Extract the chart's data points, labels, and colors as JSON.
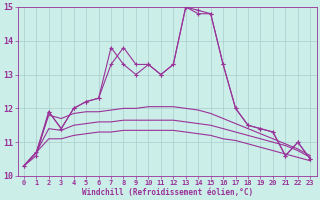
{
  "x": [
    0,
    1,
    2,
    3,
    4,
    5,
    6,
    7,
    8,
    9,
    10,
    11,
    12,
    13,
    14,
    15,
    16,
    17,
    18,
    19,
    20,
    21,
    22,
    23
  ],
  "jagged1": [
    10.3,
    10.6,
    11.9,
    11.4,
    12.0,
    12.2,
    12.3,
    13.3,
    13.8,
    13.3,
    13.3,
    13.0,
    13.3,
    15.0,
    14.8,
    14.8,
    13.3,
    12.0,
    11.5,
    11.4,
    11.3,
    10.6,
    11.0,
    10.5
  ],
  "jagged2": [
    10.3,
    10.7,
    11.9,
    11.4,
    12.0,
    12.2,
    12.3,
    13.8,
    13.3,
    13.0,
    13.3,
    13.0,
    13.3,
    15.0,
    14.9,
    14.8,
    13.3,
    12.0,
    11.5,
    11.4,
    11.3,
    10.6,
    11.0,
    10.5
  ],
  "smooth1": [
    10.3,
    10.7,
    11.8,
    11.7,
    11.85,
    11.9,
    11.9,
    11.95,
    12.0,
    12.0,
    12.05,
    12.05,
    12.05,
    12.0,
    11.95,
    11.85,
    11.7,
    11.55,
    11.4,
    11.25,
    11.1,
    10.95,
    10.8,
    10.6
  ],
  "smooth2": [
    10.3,
    10.7,
    11.4,
    11.35,
    11.5,
    11.55,
    11.6,
    11.6,
    11.65,
    11.65,
    11.65,
    11.65,
    11.65,
    11.6,
    11.55,
    11.5,
    11.4,
    11.3,
    11.2,
    11.1,
    11.0,
    10.9,
    10.75,
    10.55
  ],
  "smooth3": [
    10.3,
    10.7,
    11.1,
    11.1,
    11.2,
    11.25,
    11.3,
    11.3,
    11.35,
    11.35,
    11.35,
    11.35,
    11.35,
    11.3,
    11.25,
    11.2,
    11.1,
    11.05,
    10.95,
    10.85,
    10.75,
    10.65,
    10.55,
    10.45
  ],
  "line_color": "#993399",
  "bg_color": "#cceee8",
  "grid_color": "#aacccc",
  "xlabel": "Windchill (Refroidissement éolien,°C)",
  "ylim": [
    10.0,
    15.0
  ],
  "xlim": [
    -0.5,
    23.5
  ],
  "yticks": [
    10,
    11,
    12,
    13,
    14,
    15
  ],
  "xticks": [
    0,
    1,
    2,
    3,
    4,
    5,
    6,
    7,
    8,
    9,
    10,
    11,
    12,
    13,
    14,
    15,
    16,
    17,
    18,
    19,
    20,
    21,
    22,
    23
  ]
}
